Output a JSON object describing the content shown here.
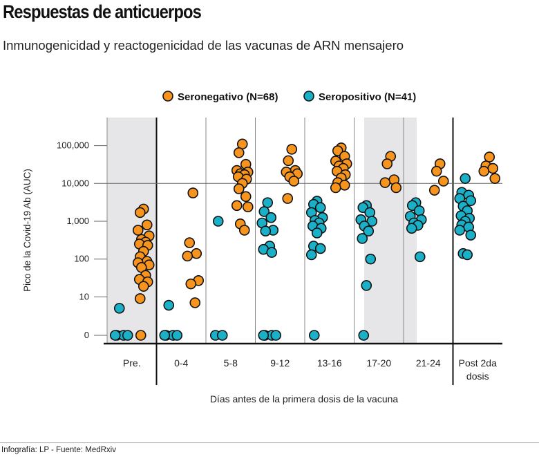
{
  "title": "Respuestas de anticuerpos",
  "subtitle": "Inmunogenicidad y reactogenicidad de las vacunas de ARN mensajero",
  "footer": "Infografía: LP - Fuente: MedRxiv",
  "chart_data": {
    "type": "scatter",
    "title": "",
    "xlabel": "Días antes de la primera dosis de la vacuna",
    "ylabel": "Pico de la Covid-19 Ab (AUC)",
    "yscale": "log (with 0 baseline)",
    "yticks": [
      0,
      10,
      100,
      1000,
      10000,
      100000
    ],
    "ytick_labels": [
      "0",
      "10",
      "100",
      "1,000",
      "10,000",
      "100,000"
    ],
    "ylim": [
      0,
      130000
    ],
    "reference_line": 10000,
    "grid": false,
    "legend_position": "top",
    "categories": [
      "Pre.",
      "0-4",
      "5-8",
      "9-12",
      "13-16",
      "17-20",
      "21-24",
      "Post 2da dosis"
    ],
    "category_labels": [
      [
        "Pre."
      ],
      [
        "0-4"
      ],
      [
        "5-8"
      ],
      [
        "9-12"
      ],
      [
        "13-16"
      ],
      [
        "17-20"
      ],
      [
        "21-24"
      ],
      [
        "Post 2da",
        "dosis"
      ]
    ],
    "series": [
      {
        "name": "Seronegativo (N=68)",
        "color": "#f7941d",
        "values": [
          [
            2100,
            1700,
            800,
            580,
            410,
            330,
            280,
            250,
            230,
            160,
            115,
            87,
            80,
            70,
            60,
            37,
            29,
            25,
            19,
            9,
            0
          ],
          [
            5600,
            270,
            140,
            120,
            27,
            22,
            7
          ],
          [
            110000,
            65000,
            32000,
            22000,
            20000,
            18000,
            17000,
            15000,
            13000,
            10000,
            7200,
            4500,
            2600,
            2400,
            850,
            580
          ],
          [
            80000,
            40000,
            22000,
            20000,
            18000,
            15000,
            11500,
            4000
          ],
          [
            87000,
            73000,
            52000,
            39000,
            33000,
            29000,
            25000,
            21000,
            17000,
            14000,
            10500,
            9000,
            7700
          ],
          [
            52000,
            33000,
            12500,
            10500,
            7700
          ],
          [
            33000,
            21000,
            11500,
            6600
          ],
          [
            50000,
            29000,
            25000,
            21000,
            13500
          ]
        ]
      },
      {
        "name": "Seropositivo (N=41)",
        "color": "#1ab0c8",
        "values": [
          [
            5,
            0,
            0,
            0,
            0
          ],
          [
            6,
            0,
            0,
            0,
            0
          ],
          [
            1000,
            0,
            0
          ],
          [
            3100,
            1800,
            1250,
            900,
            580,
            550,
            220,
            180,
            150,
            0,
            0,
            0,
            0
          ],
          [
            3400,
            2800,
            2300,
            1700,
            1250,
            1050,
            900,
            750,
            650,
            490,
            220,
            190,
            130,
            0
          ],
          [
            2600,
            2300,
            1700,
            1100,
            1000,
            750,
            550,
            350,
            100,
            20,
            0
          ],
          [
            3100,
            2600,
            1900,
            1350,
            1100,
            900,
            780,
            650,
            115
          ],
          [
            13500,
            5800,
            4900,
            4000,
            3500,
            2500,
            1900,
            1400,
            1200,
            1000,
            800,
            700,
            580,
            430,
            140,
            130
          ]
        ]
      }
    ]
  }
}
